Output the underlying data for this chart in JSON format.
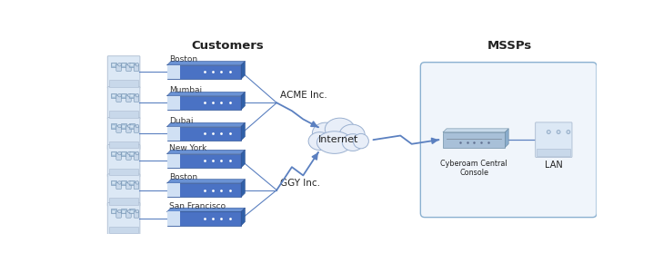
{
  "title": "Customers",
  "mssp_title": "MSSPs",
  "background_color": "#ffffff",
  "fig_width": 7.29,
  "fig_height": 2.9,
  "dpi": 100,
  "acme_label": "ACME Inc.",
  "ggy_label": "GGY Inc.",
  "internet_label": "Internet",
  "ccc_label": "Cyberoam Central\nConsole",
  "lan_label": "LAN",
  "acme_cities": [
    "Boston",
    "Mumbai",
    "Dubai"
  ],
  "ggy_cities": [
    "New York",
    "Boston",
    "San Francisco"
  ],
  "light_blue": "#c5d8f0",
  "med_blue": "#4472c4",
  "dark_blue": "#2f5496",
  "arrow_blue": "#5b80c0",
  "text_dark": "#222222",
  "text_city": "#333333",
  "fw_face": "#4a72c4",
  "fw_top": "#6a92d4",
  "fw_right": "#3060a8",
  "fw_strip_light": "#d0e0f4",
  "cloud_fill": "#e8eef8",
  "cloud_edge": "#9ab0d0",
  "mssp_fill": "#f0f5fb",
  "mssp_edge": "#8ab0d0",
  "ccc_face": "#a8c0d8",
  "ccc_top": "#c8daea",
  "person_fill": "#c8d8ea",
  "person_edge": "#7090b0",
  "group_fill": "#dce8f5",
  "group_edge": "#aabbd0"
}
